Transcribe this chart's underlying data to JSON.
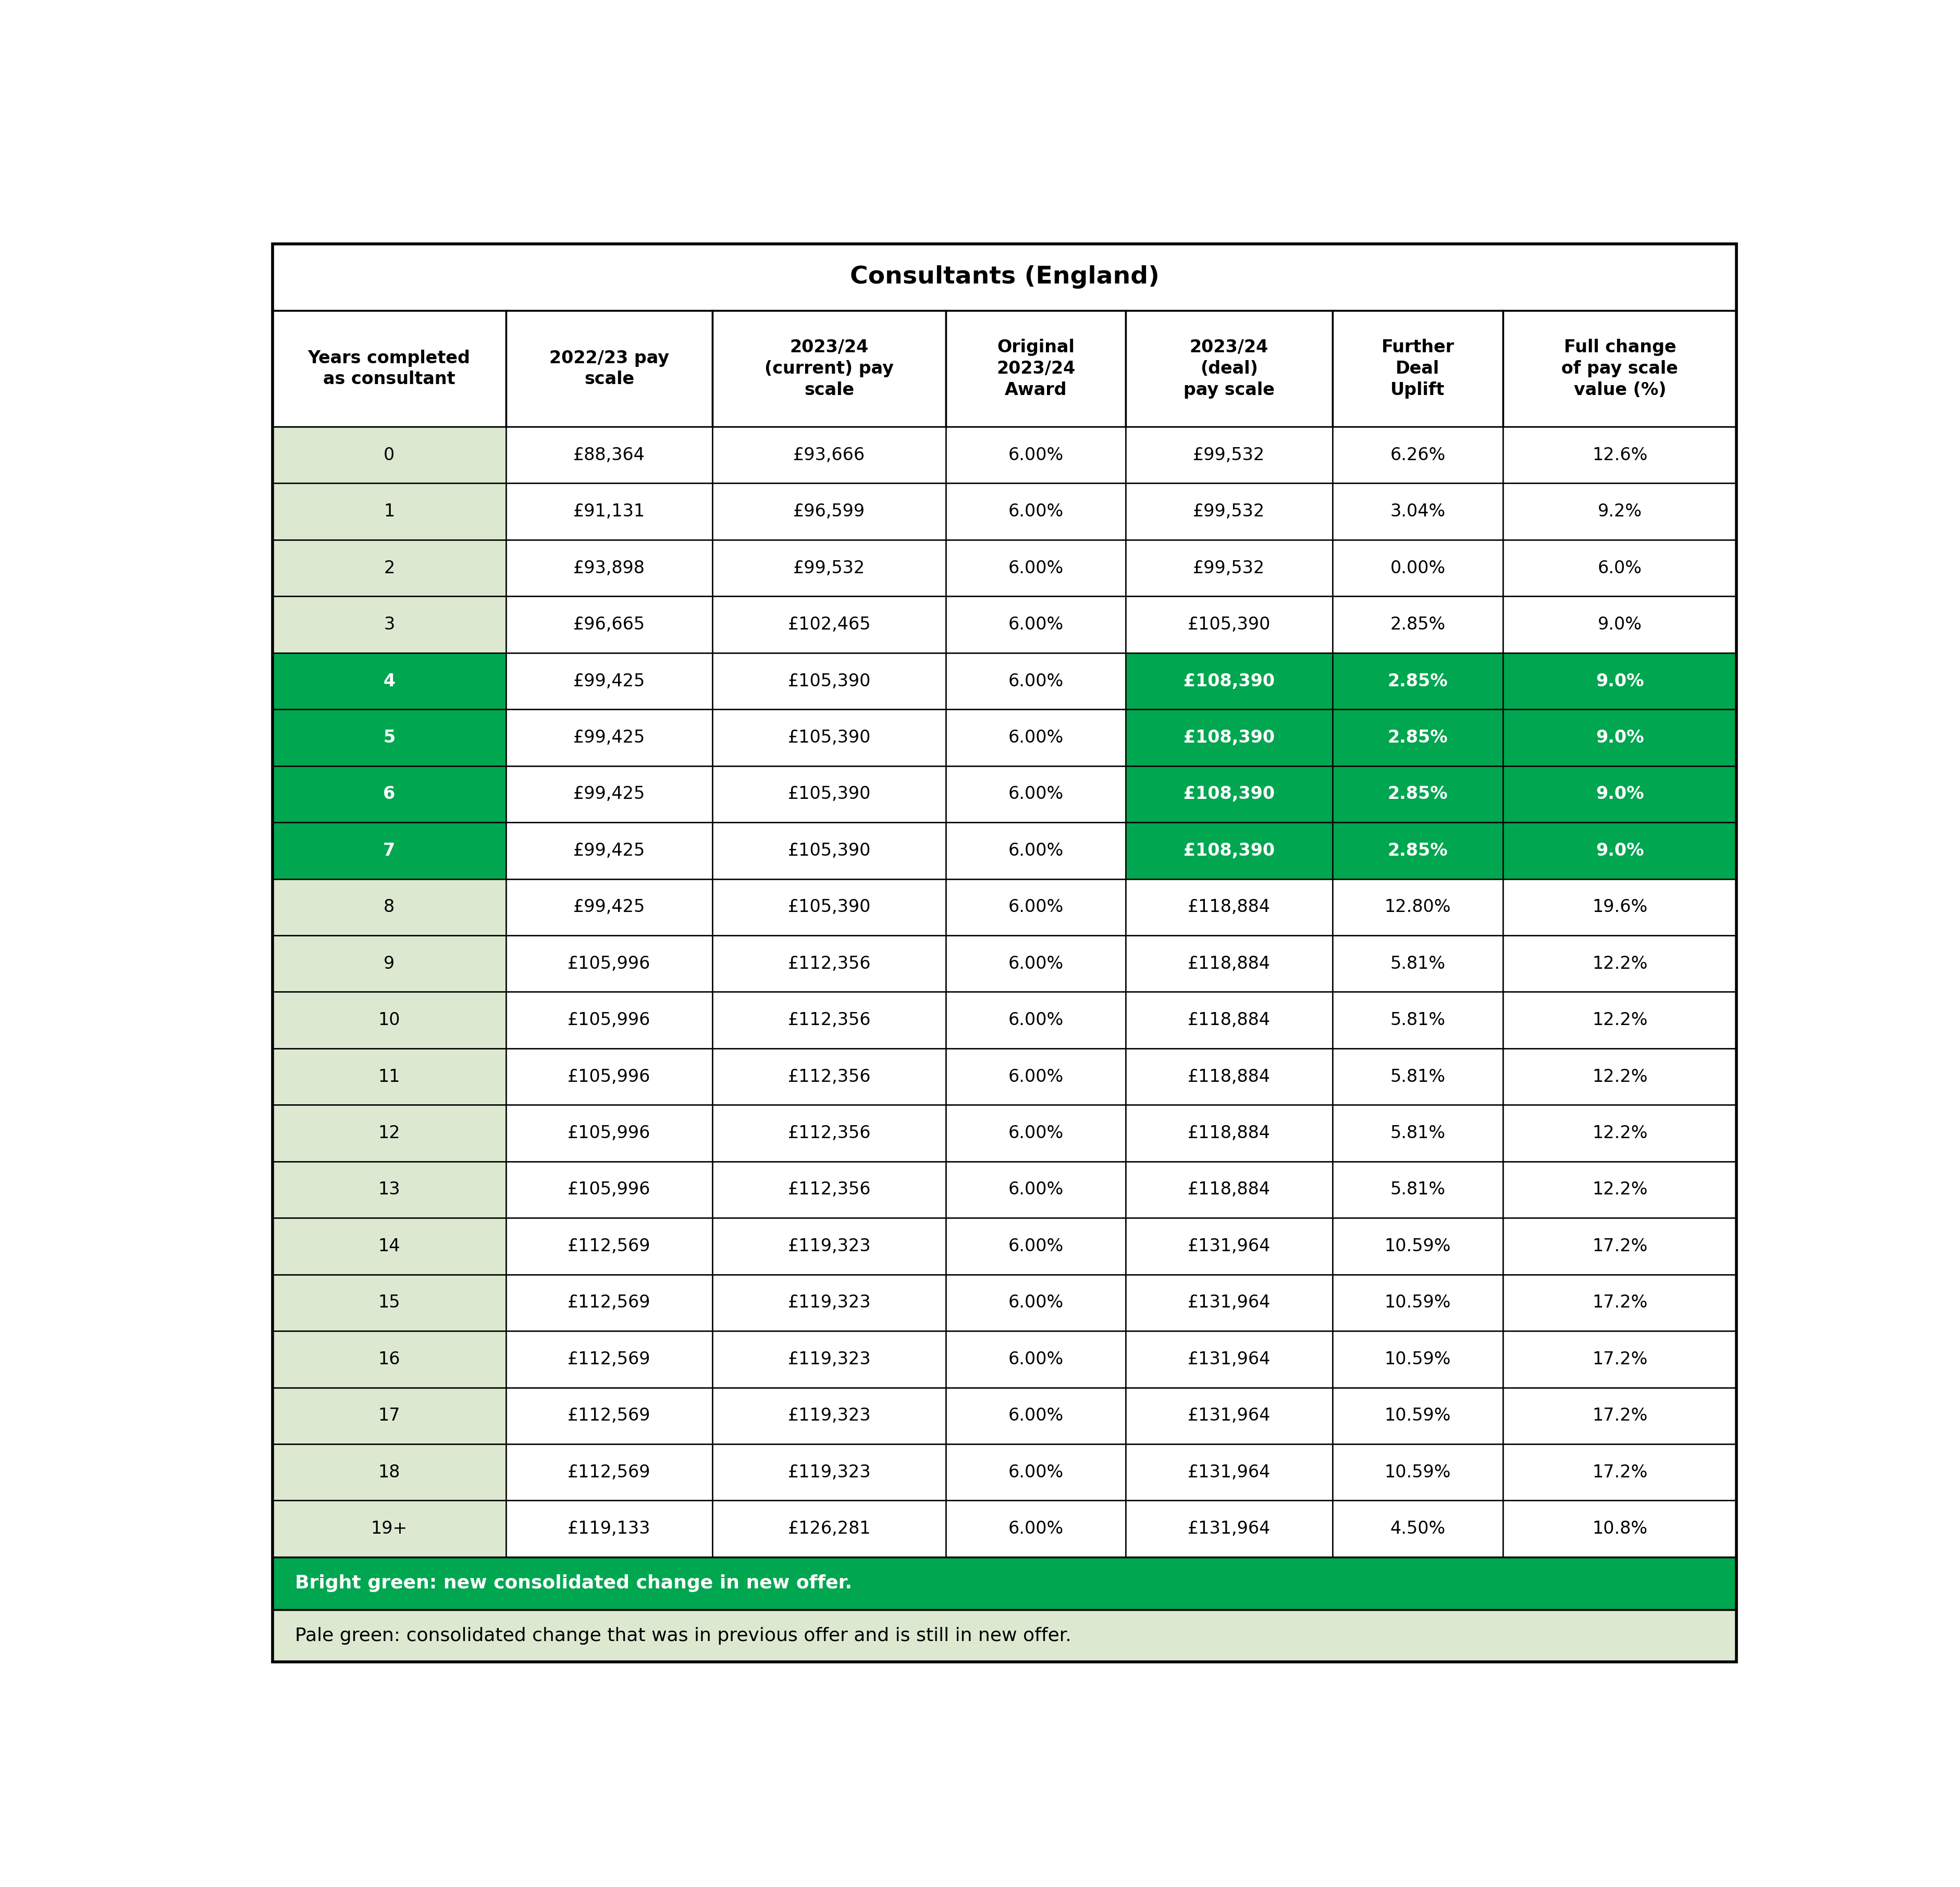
{
  "title": "Consultants (England)",
  "columns": [
    "Years completed\nas consultant",
    "2022/23 pay\nscale",
    "2023/24\n(current) pay\nscale",
    "Original\n2023/24\nAward",
    "2023/24\n(deal)\npay scale",
    "Further\nDeal\nUplift",
    "Full change\nof pay scale\nvalue (%)"
  ],
  "rows": [
    [
      "0",
      "£88,364",
      "£93,666",
      "6.00%",
      "£99,532",
      "6.26%",
      "12.6%"
    ],
    [
      "1",
      "£91,131",
      "£96,599",
      "6.00%",
      "£99,532",
      "3.04%",
      "9.2%"
    ],
    [
      "2",
      "£93,898",
      "£99,532",
      "6.00%",
      "£99,532",
      "0.00%",
      "6.0%"
    ],
    [
      "3",
      "£96,665",
      "£102,465",
      "6.00%",
      "£105,390",
      "2.85%",
      "9.0%"
    ],
    [
      "4",
      "£99,425",
      "£105,390",
      "6.00%",
      "£108,390",
      "2.85%",
      "9.0%"
    ],
    [
      "5",
      "£99,425",
      "£105,390",
      "6.00%",
      "£108,390",
      "2.85%",
      "9.0%"
    ],
    [
      "6",
      "£99,425",
      "£105,390",
      "6.00%",
      "£108,390",
      "2.85%",
      "9.0%"
    ],
    [
      "7",
      "£99,425",
      "£105,390",
      "6.00%",
      "£108,390",
      "2.85%",
      "9.0%"
    ],
    [
      "8",
      "£99,425",
      "£105,390",
      "6.00%",
      "£118,884",
      "12.80%",
      "19.6%"
    ],
    [
      "9",
      "£105,996",
      "£112,356",
      "6.00%",
      "£118,884",
      "5.81%",
      "12.2%"
    ],
    [
      "10",
      "£105,996",
      "£112,356",
      "6.00%",
      "£118,884",
      "5.81%",
      "12.2%"
    ],
    [
      "11",
      "£105,996",
      "£112,356",
      "6.00%",
      "£118,884",
      "5.81%",
      "12.2%"
    ],
    [
      "12",
      "£105,996",
      "£112,356",
      "6.00%",
      "£118,884",
      "5.81%",
      "12.2%"
    ],
    [
      "13",
      "£105,996",
      "£112,356",
      "6.00%",
      "£118,884",
      "5.81%",
      "12.2%"
    ],
    [
      "14",
      "£112,569",
      "£119,323",
      "6.00%",
      "£131,964",
      "10.59%",
      "17.2%"
    ],
    [
      "15",
      "£112,569",
      "£119,323",
      "6.00%",
      "£131,964",
      "10.59%",
      "17.2%"
    ],
    [
      "16",
      "£112,569",
      "£119,323",
      "6.00%",
      "£131,964",
      "10.59%",
      "17.2%"
    ],
    [
      "17",
      "£112,569",
      "£119,323",
      "6.00%",
      "£131,964",
      "10.59%",
      "17.2%"
    ],
    [
      "18",
      "£112,569",
      "£119,323",
      "6.00%",
      "£131,964",
      "10.59%",
      "17.2%"
    ],
    [
      "19+",
      "£119,133",
      "£126,281",
      "6.00%",
      "£131,964",
      "4.50%",
      "10.8%"
    ]
  ],
  "bright_green_rows": [
    4,
    5,
    6,
    7
  ],
  "colors": {
    "bright_green": "#00A650",
    "pale_green_col0": "#dce8d0",
    "white_cell": "#ffffff",
    "border": "#000000",
    "header_bg": "#ffffff",
    "title_bg": "#ffffff"
  },
  "footer_bright_text": "Bright green: new consolidated change in new offer.",
  "footer_pale_text": "Pale green: consolidated change that was in previous offer and is still in new offer.",
  "col_widths_ratio": [
    1.3,
    1.15,
    1.3,
    1.0,
    1.15,
    0.95,
    1.3
  ]
}
